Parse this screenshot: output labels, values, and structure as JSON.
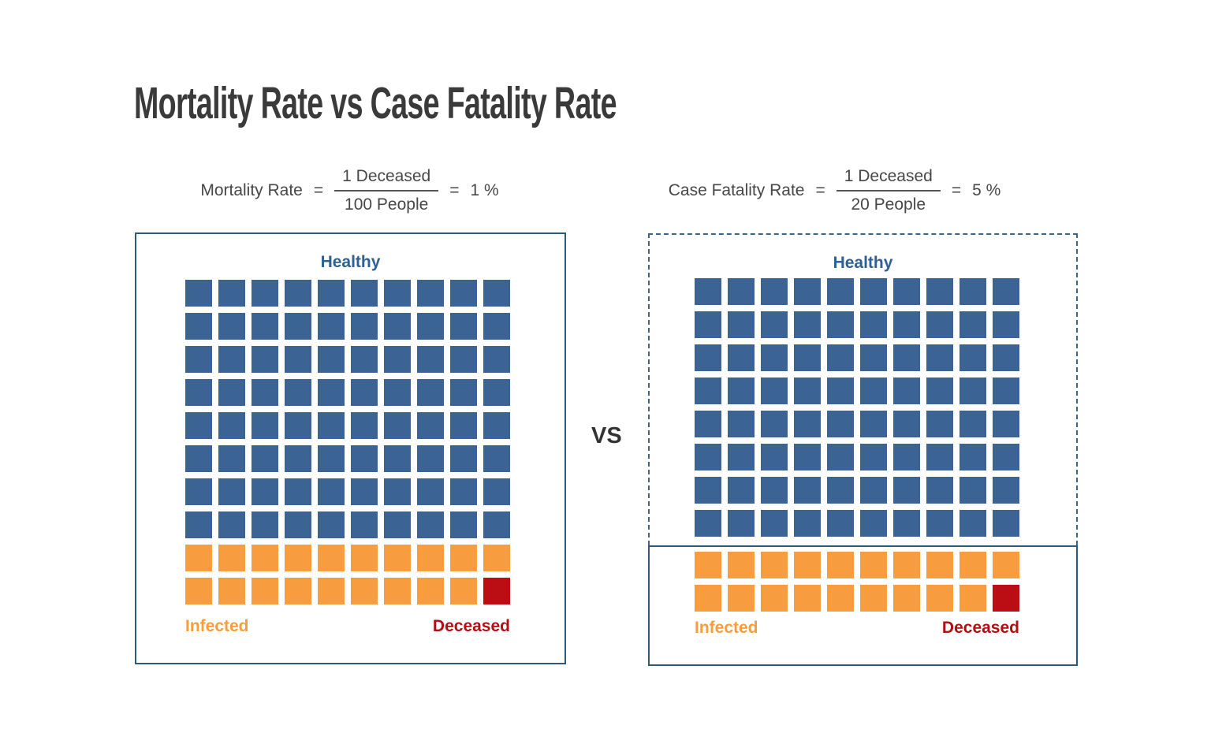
{
  "title": "Mortality Rate vs Case Fatality Rate",
  "vs_label": "VS",
  "colors": {
    "background": "#ffffff",
    "title_text": "#3a3a3a",
    "formula_text": "#474747",
    "fraction_line": "#555555",
    "healthy_square": "#3b6394",
    "infected_square": "#f89c40",
    "deceased_square": "#bb0e14",
    "healthy_label": "#2e6093",
    "infected_label": "#f89c3c",
    "deceased_label": "#b30e14",
    "solid_border": "#2d5a7b",
    "dashed_border": "#3e6486",
    "vs_text": "#333333"
  },
  "left_chart": {
    "formula": {
      "label": "Mortality Rate",
      "eq1": "=",
      "numerator": "1 Deceased",
      "denominator": "100 People",
      "eq2": "=",
      "result": "1 %"
    },
    "healthy_label": "Healthy",
    "infected_label": "Infected",
    "deceased_label": "Deceased"
  },
  "right_chart": {
    "formula": {
      "label": "Case Fatality Rate",
      "eq1": "=",
      "numerator": "1 Deceased",
      "denominator": "20 People",
      "eq2": "=",
      "result": "5 %"
    },
    "healthy_label": "Healthy",
    "infected_label": "Infected",
    "deceased_label": "Deceased"
  },
  "chart_data": [
    {
      "type": "waffle",
      "title": "Mortality Rate",
      "formula_text": "Mortality Rate = 1 Deceased / 100 People = 1 %",
      "grid": {
        "rows": 10,
        "cols": 10
      },
      "counts": {
        "healthy": 80,
        "infected": 19,
        "deceased": 1
      },
      "population": 100,
      "value_pct": 1,
      "legend": [
        {
          "label": "Healthy",
          "color": "#3b6394"
        },
        {
          "label": "Infected",
          "color": "#f89c40"
        },
        {
          "label": "Deceased",
          "color": "#bb0e14"
        }
      ],
      "border_style": "solid box around all 100 people"
    },
    {
      "type": "waffle",
      "title": "Case Fatality Rate",
      "formula_text": "Case Fatality Rate = 1 Deceased / 20 People = 5 %",
      "grid": {
        "rows": 10,
        "cols": 10
      },
      "counts": {
        "healthy": 80,
        "infected": 19,
        "deceased": 1
      },
      "population": 20,
      "value_pct": 5,
      "legend": [
        {
          "label": "Healthy",
          "color": "#3b6394"
        },
        {
          "label": "Infected",
          "color": "#f89c40"
        },
        {
          "label": "Deceased",
          "color": "#bb0e14"
        }
      ],
      "border_style": "dashed box around 80 healthy people, solid box around 20 infected/deceased people"
    }
  ]
}
